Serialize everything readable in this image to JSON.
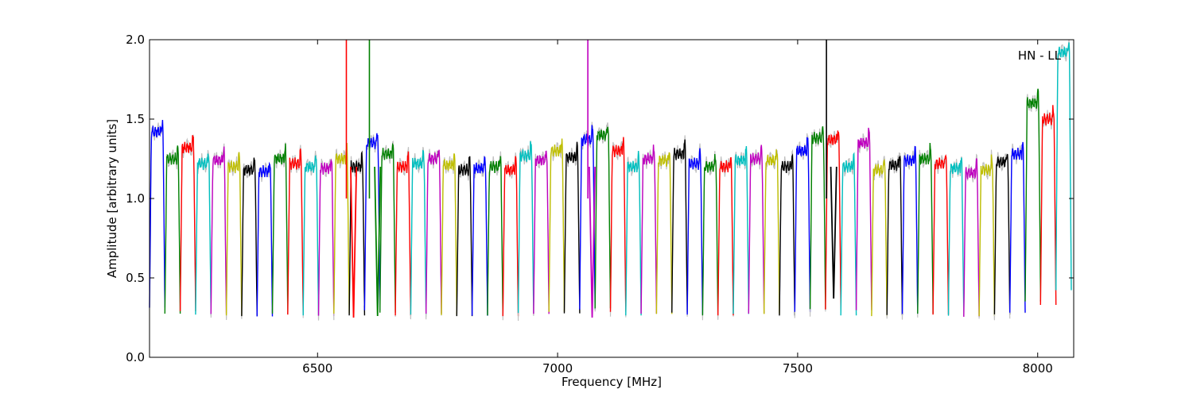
{
  "chart_data": {
    "type": "line",
    "annotation": "HN - LL",
    "xlabel": "Frequency [MHz]",
    "ylabel": "Amplitude [arbitrary units]",
    "xlim": [
      6150,
      8075
    ],
    "ylim": [
      0,
      2
    ],
    "xticks": [
      6500,
      7000,
      7500,
      8000
    ],
    "xtick_labels": [
      "6500",
      "7000",
      "7500",
      "8000"
    ],
    "yticks": [
      0,
      0.5,
      1.0,
      1.5,
      2.0
    ],
    "ytick_labels": [
      "0.0",
      "0.5",
      "1.0",
      "1.5",
      "2.0"
    ],
    "grid": false,
    "colors": [
      "#0000ff",
      "#008000",
      "#ff0000",
      "#00bfbf",
      "#bf00bf",
      "#bfbf00",
      "#000000"
    ],
    "background_color": "#c0c0c0",
    "channel_width_mhz": 32,
    "channel_starts": [
      6150,
      6182,
      6214,
      6246,
      6278,
      6310,
      6342,
      6374,
      6406,
      6438,
      6470,
      6502,
      6534,
      6566,
      6598,
      6630,
      6662,
      6694,
      6726,
      6758,
      6790,
      6822,
      6854,
      6886,
      6918,
      6950,
      6982,
      7014,
      7046,
      7078,
      7110,
      7142,
      7174,
      7206,
      7238,
      7270,
      7302,
      7334,
      7366,
      7398,
      7430,
      7462,
      7494,
      7526,
      7558,
      7590,
      7622,
      7654,
      7686,
      7718,
      7750,
      7782,
      7814,
      7846,
      7878,
      7910,
      7942,
      7974,
      8006,
      8038
    ],
    "channel_levels": [
      1.42,
      1.25,
      1.32,
      1.22,
      1.24,
      1.2,
      1.18,
      1.17,
      1.25,
      1.22,
      1.2,
      1.19,
      1.25,
      1.2,
      1.35,
      1.28,
      1.2,
      1.22,
      1.25,
      1.21,
      1.18,
      1.19,
      1.2,
      1.18,
      1.27,
      1.24,
      1.3,
      1.26,
      1.37,
      1.4,
      1.3,
      1.2,
      1.25,
      1.24,
      1.28,
      1.22,
      1.2,
      1.2,
      1.24,
      1.25,
      1.24,
      1.2,
      1.3,
      1.38,
      1.37,
      1.2,
      1.35,
      1.18,
      1.21,
      1.24,
      1.25,
      1.22,
      1.19,
      1.16,
      1.18,
      1.23,
      1.28,
      1.6,
      1.5,
      1.92
    ],
    "spikes": [
      {
        "x": 6560,
        "y": 2.0,
        "color": "#ff0000"
      },
      {
        "x": 6608,
        "y": 2.0,
        "color": "#008000"
      },
      {
        "x": 7063,
        "y": 2.0,
        "color": "#bf00bf"
      },
      {
        "x": 7560,
        "y": 2.0,
        "color": "#000000"
      }
    ],
    "dips": [
      {
        "x": 6575,
        "y": 0.25,
        "color": "#ff0000"
      },
      {
        "x": 6625,
        "y": 0.26,
        "color": "#008000"
      },
      {
        "x": 7072,
        "y": 0.25,
        "color": "#bf00bf"
      },
      {
        "x": 7575,
        "y": 0.37,
        "color": "#000000"
      }
    ]
  }
}
